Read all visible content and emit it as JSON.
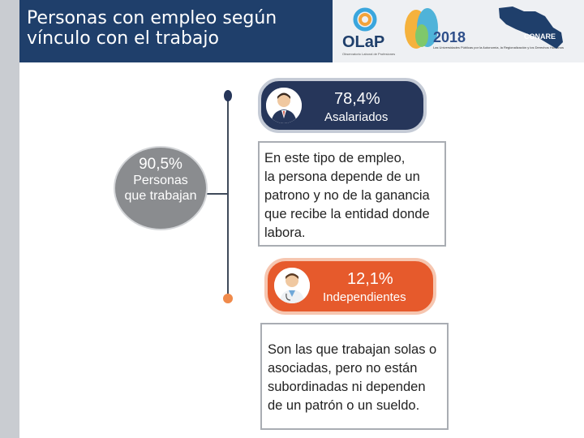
{
  "header": {
    "title_line1": "Personas con empleo según",
    "title_line2": "vínculo con el trabajo"
  },
  "banner": {
    "olap_logo": "OLaP",
    "olap_sub": "Observatorio Laboral de Profesiones",
    "year": "2018",
    "year_sub": "Las Universidades Públicas por la Autonomía, la Regionalización y los Derechos Humanos",
    "conare": "CONARE"
  },
  "total": {
    "percent": "90,5%",
    "label_line1": "Personas",
    "label_line2": "que trabajan"
  },
  "categories": [
    {
      "percent": "78,4%",
      "label": "Asalariados",
      "icon": "businessman-icon",
      "description": [
        "En este tipo de empleo,",
        "la persona depende de un",
        "patrono y no de la ganancia",
        "que recibe la entidad donde",
        "labora."
      ]
    },
    {
      "percent": "12,1%",
      "label": "Independientes",
      "icon": "doctor-icon",
      "description": [
        "Son las que trabajan solas o",
        "asociadas, pero no están",
        "subordinadas ni dependen",
        "de un patrón o un sueldo."
      ]
    }
  ],
  "colors": {
    "title_bg": "#1f3f6b",
    "asalariados": "#26365a",
    "independientes": "#e65a2c",
    "total_circle": "#8a8c8f"
  }
}
